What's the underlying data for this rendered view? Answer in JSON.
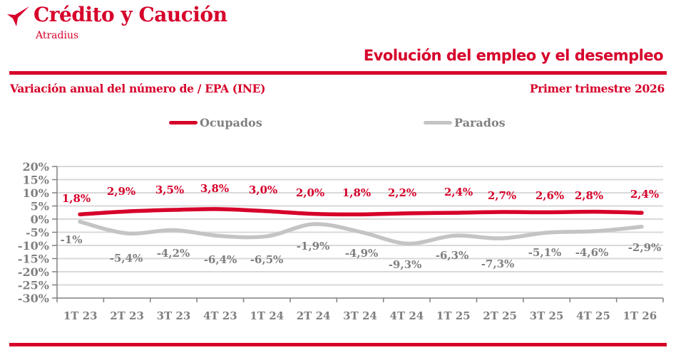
{
  "header": {
    "brand": "Crédito y Caución",
    "brand_sub": "Atradius",
    "title": "Evolución del empleo y el desempleo",
    "subtitle": "Variación anual del número de / EPA (INE)",
    "period": "Primer trimestre 2026",
    "logo_icon": "arrow-bird-icon"
  },
  "colors": {
    "accent": "#d6002a",
    "gray_series": "#c4c4c4",
    "text_gray": "#808080",
    "grid": "#d9d9d9"
  },
  "chart_data": {
    "type": "line",
    "title": "Evolución del empleo y el desempleo",
    "subtitle": "Variación anual del número de / EPA (INE)",
    "xlabel": "",
    "ylabel": "",
    "ylim": [
      -30,
      20
    ],
    "ystep": 5,
    "y_ticks": [
      "20%",
      "15%",
      "10%",
      "5%",
      "0%",
      "-5%",
      "-10%",
      "-15%",
      "-20%",
      "-25%",
      "-30%"
    ],
    "grid": true,
    "legend_position": "top",
    "categories": [
      "1T 23",
      "2T 23",
      "3T 23",
      "4T 23",
      "1T 24",
      "2T 24",
      "3T 24",
      "4T 24",
      "1T 25",
      "2T 25",
      "3T 25",
      "4T 25",
      "1T 26"
    ],
    "series": [
      {
        "name": "Ocupados",
        "color": "#d6002a",
        "values": [
          1.8,
          2.9,
          3.5,
          3.8,
          3.0,
          2.0,
          1.8,
          2.2,
          2.4,
          2.7,
          2.6,
          2.8,
          2.4
        ],
        "labels": [
          "1,8%",
          "2,9%",
          "3,5%",
          "3,8%",
          "3,0%",
          "2,0%",
          "1,8%",
          "2,2%",
          "2,4%",
          "2,7%",
          "2,6%",
          "2,8%",
          "2,4%"
        ]
      },
      {
        "name": "Parados",
        "color": "#c4c4c4",
        "values": [
          -1,
          -5.4,
          -4.2,
          -6.4,
          -6.5,
          -1.9,
          -4.9,
          -9.3,
          -6.3,
          -7.3,
          -5.1,
          -4.6,
          -2.9
        ],
        "labels": [
          "-1%",
          "-5,4%",
          "-4,2%",
          "-6,4%",
          "-6,5%",
          "-1,9%",
          "-4,9%",
          "-9,3%",
          "-6,3%",
          "-7,3%",
          "-5,1%",
          "-4,6%",
          "-2,9%"
        ]
      }
    ]
  }
}
